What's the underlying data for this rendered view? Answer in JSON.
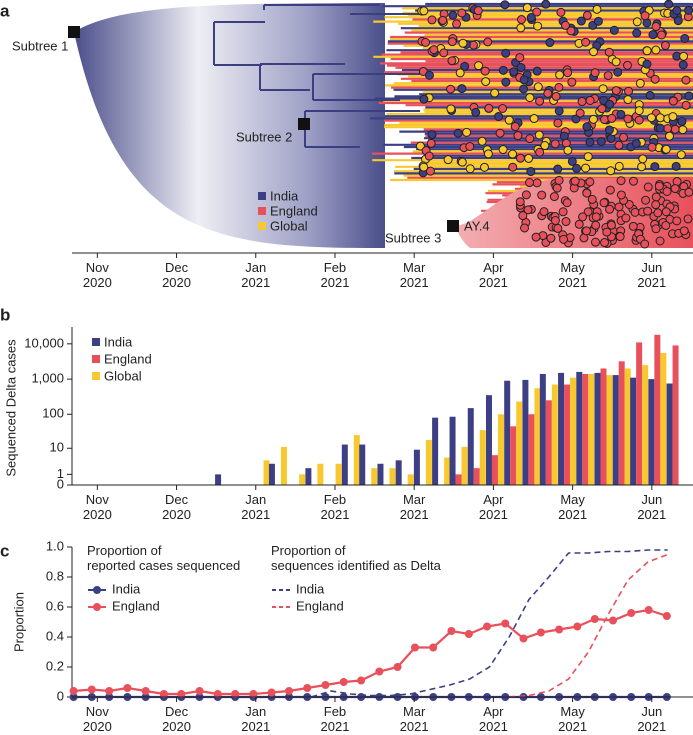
{
  "chart_data": [
    {
      "type": "tree",
      "panel": "a",
      "labels": {
        "subtree1": "Subtree 1",
        "subtree2": "Subtree 2",
        "subtree3": "Subtree 3",
        "lineage": "AY.4"
      },
      "legend": [
        {
          "name": "India",
          "color": "#3d3f85"
        },
        {
          "name": "England",
          "color": "#e8505b"
        },
        {
          "name": "Global",
          "color": "#f8c92e"
        }
      ],
      "xlim": [
        -0.32,
        7.52
      ],
      "xticks": [
        {
          "value": 0,
          "label": "Nov 2020"
        },
        {
          "value": 1,
          "label": "Dec 2020"
        },
        {
          "value": 2,
          "label": "Jan 2021"
        },
        {
          "value": 3,
          "label": "Feb 2021"
        },
        {
          "value": 4,
          "label": "Mar 2021"
        },
        {
          "value": 5,
          "label": "Apr 2021"
        },
        {
          "value": 6,
          "label": "May 2021"
        },
        {
          "value": 7,
          "label": "Jun 2021"
        }
      ]
    },
    {
      "type": "bar",
      "panel": "b",
      "ylabel": "Sequenced Delta cases",
      "yscale": "symlog",
      "legend": "upper left",
      "x": [
        1.6,
        1.83,
        2.06,
        2.28,
        2.51,
        2.74,
        2.97,
        3.2,
        3.42,
        3.65,
        3.88,
        4.11,
        4.34,
        4.56,
        4.79,
        5.02,
        5.25,
        5.48,
        5.7,
        5.93,
        6.16,
        6.39,
        6.62,
        6.84,
        7.07,
        7.3
      ],
      "series": [
        {
          "name": "India",
          "color": "#3d3f85",
          "values": [
            1,
            0,
            0,
            3,
            0,
            2,
            0,
            13,
            13,
            3,
            4,
            9,
            80,
            85,
            150,
            350,
            900,
            950,
            1400,
            1500,
            1600,
            1500,
            1300,
            1100,
            1000,
            750
          ]
        },
        {
          "name": "England",
          "color": "#e8505b",
          "values": [
            0,
            0,
            0,
            0,
            0,
            0,
            0,
            0,
            0,
            0,
            0,
            0,
            0,
            1,
            2,
            6,
            45,
            100,
            250,
            700,
            1400,
            2000,
            3200,
            11000,
            18000,
            9000
          ]
        },
        {
          "name": "Global",
          "color": "#f8c92e",
          "values": [
            0,
            0,
            4,
            11,
            1,
            3,
            3,
            25,
            2,
            2,
            1,
            18,
            5,
            11,
            35,
            100,
            230,
            550,
            700,
            1100,
            1400,
            1300,
            2000,
            2500,
            5500,
            0
          ]
        }
      ],
      "xlim": [
        -0.32,
        7.52
      ],
      "xticks": [
        {
          "value": 0,
          "label": "Nov 2020"
        },
        {
          "value": 1,
          "label": "Dec 2020"
        },
        {
          "value": 2,
          "label": "Jan 2021"
        },
        {
          "value": 3,
          "label": "Feb 2021"
        },
        {
          "value": 4,
          "label": "Mar 2021"
        },
        {
          "value": 5,
          "label": "Apr 2021"
        },
        {
          "value": 6,
          "label": "May 2021"
        },
        {
          "value": 7,
          "label": "Jun 2021"
        }
      ],
      "ylim": [
        0,
        30000
      ],
      "yticks": [
        0,
        1,
        10,
        100,
        {
          "value": 1000,
          "label": "1,000"
        },
        {
          "value": 10000,
          "label": "10,000"
        }
      ]
    },
    {
      "type": "line",
      "panel": "c",
      "ylabel": "Proportion",
      "legend_titles": [
        [
          "Proportion of",
          "reported cases sequenced"
        ],
        [
          "Proportion of",
          "sequences identified as Delta"
        ]
      ],
      "series": [
        {
          "name": "India",
          "color": "#3d3f85",
          "style": "markers",
          "x": [
            -0.3,
            -0.07,
            0.15,
            0.38,
            0.61,
            0.84,
            1.06,
            1.29,
            1.52,
            1.74,
            1.97,
            2.2,
            2.42,
            2.65,
            2.88,
            3.11,
            3.33,
            3.56,
            3.79,
            4.01,
            4.24,
            4.47,
            4.69,
            4.92,
            5.15,
            5.38,
            5.6,
            5.83,
            6.06,
            6.28,
            6.51,
            6.74,
            6.96,
            7.19
          ],
          "values": [
            0,
            0,
            0,
            0,
            0,
            0,
            0,
            0,
            0,
            0,
            0,
            0,
            0,
            0,
            0,
            0,
            0,
            0,
            0,
            0,
            0,
            0,
            0,
            0,
            0,
            0,
            0,
            0,
            0,
            0,
            0,
            0,
            0,
            0
          ]
        },
        {
          "name": "England",
          "color": "#e8505b",
          "style": "markers",
          "x": [
            -0.3,
            -0.07,
            0.15,
            0.38,
            0.61,
            0.84,
            1.06,
            1.29,
            1.52,
            1.74,
            1.97,
            2.2,
            2.42,
            2.65,
            2.88,
            3.11,
            3.33,
            3.56,
            3.79,
            4.01,
            4.24,
            4.47,
            4.69,
            4.92,
            5.15,
            5.38,
            5.6,
            5.83,
            6.06,
            6.28,
            6.51,
            6.74,
            6.96,
            7.19
          ],
          "values": [
            0.04,
            0.05,
            0.04,
            0.06,
            0.04,
            0.02,
            0.02,
            0.04,
            0.02,
            0.02,
            0.02,
            0.03,
            0.04,
            0.06,
            0.08,
            0.1,
            0.11,
            0.17,
            0.2,
            0.33,
            0.33,
            0.44,
            0.42,
            0.47,
            0.49,
            0.39,
            0.43,
            0.45,
            0.47,
            0.52,
            0.51,
            0.56,
            0.58,
            0.54
          ]
        },
        {
          "name": "India",
          "color": "#3d3f85",
          "style": "dashed",
          "x": [
            2.7,
            2.95,
            3.2,
            3.45,
            3.7,
            3.95,
            4.2,
            4.45,
            4.7,
            4.95,
            5.2,
            5.45,
            5.7,
            5.95,
            6.2,
            6.45,
            6.7,
            6.95,
            7.2
          ],
          "values": [
            0,
            0.04,
            0.02,
            0.01,
            0.01,
            0.02,
            0.05,
            0.08,
            0.12,
            0.2,
            0.4,
            0.65,
            0.8,
            0.96,
            0.96,
            0.97,
            0.97,
            0.98,
            0.98
          ]
        },
        {
          "name": "England",
          "color": "#e8505b",
          "style": "dashed",
          "x": [
            5.2,
            5.45,
            5.7,
            5.95,
            6.2,
            6.45,
            6.7,
            6.95,
            7.2
          ],
          "values": [
            0,
            0.01,
            0.04,
            0.12,
            0.3,
            0.55,
            0.78,
            0.9,
            0.95
          ]
        }
      ],
      "xlim": [
        -0.32,
        7.52
      ],
      "xticks": [
        {
          "value": 0,
          "label": "Nov 2020"
        },
        {
          "value": 1,
          "label": "Dec 2020"
        },
        {
          "value": 2,
          "label": "Jan 2021"
        },
        {
          "value": 3,
          "label": "Feb 2021"
        },
        {
          "value": 4,
          "label": "Mar 2021"
        },
        {
          "value": 5,
          "label": "Apr 2021"
        },
        {
          "value": 6,
          "label": "May 2021"
        },
        {
          "value": 7,
          "label": "Jun 2021"
        }
      ],
      "ylim": [
        0,
        1
      ],
      "yticks": [
        0,
        0.2,
        0.4,
        0.6,
        0.8,
        {
          "value": 1,
          "label": "1.0"
        }
      ]
    }
  ]
}
